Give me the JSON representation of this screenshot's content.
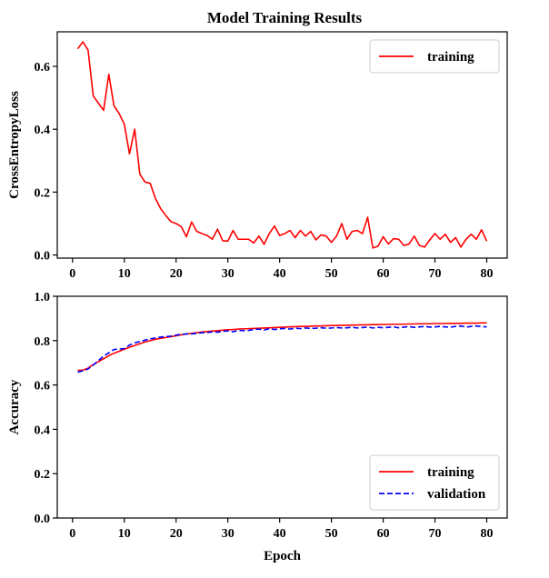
{
  "figure": {
    "title": "Model Training Results"
  },
  "chart_data": [
    {
      "type": "line",
      "title": "Model Training Results",
      "xlabel": "",
      "ylabel": "CrossEntropyLoss",
      "xlim": [
        -2.95,
        83.95
      ],
      "ylim": [
        -0.01,
        0.71
      ],
      "xticks": [
        0,
        10,
        20,
        30,
        40,
        50,
        60,
        70,
        80
      ],
      "xtick_labels": [
        "0",
        "10",
        "20",
        "30",
        "40",
        "50",
        "60",
        "70",
        "80"
      ],
      "yticks": [
        0.0,
        0.2,
        0.4,
        0.6
      ],
      "ytick_labels": [
        "0.0",
        "0.2",
        "0.4",
        "0.6"
      ],
      "grid": false,
      "legend_position": "upper-right",
      "colors": {
        "training": "#ff0000"
      },
      "x": [
        1,
        2,
        3,
        4,
        5,
        6,
        7,
        8,
        9,
        10,
        11,
        12,
        13,
        14,
        15,
        16,
        17,
        18,
        19,
        20,
        21,
        22,
        23,
        24,
        25,
        26,
        27,
        28,
        29,
        30,
        31,
        32,
        33,
        34,
        35,
        36,
        37,
        38,
        39,
        40,
        41,
        42,
        43,
        44,
        45,
        46,
        47,
        48,
        49,
        50,
        51,
        52,
        53,
        54,
        55,
        56,
        57,
        58,
        59,
        60,
        61,
        62,
        63,
        64,
        65,
        66,
        67,
        68,
        69,
        70,
        71,
        72,
        73,
        74,
        75,
        76,
        77,
        78,
        79,
        80
      ],
      "series": [
        {
          "name": "training",
          "style": "solid",
          "values": [
            0.656,
            0.678,
            0.652,
            0.506,
            0.483,
            0.46,
            0.575,
            0.475,
            0.45,
            0.416,
            0.322,
            0.4,
            0.257,
            0.232,
            0.228,
            0.18,
            0.148,
            0.126,
            0.106,
            0.1,
            0.09,
            0.058,
            0.105,
            0.075,
            0.068,
            0.062,
            0.05,
            0.082,
            0.045,
            0.044,
            0.078,
            0.05,
            0.05,
            0.05,
            0.038,
            0.06,
            0.034,
            0.068,
            0.092,
            0.062,
            0.068,
            0.078,
            0.055,
            0.078,
            0.06,
            0.075,
            0.048,
            0.064,
            0.06,
            0.04,
            0.06,
            0.1,
            0.05,
            0.075,
            0.078,
            0.068,
            0.12,
            0.022,
            0.028,
            0.058,
            0.035,
            0.052,
            0.05,
            0.03,
            0.035,
            0.06,
            0.03,
            0.025,
            0.048,
            0.068,
            0.05,
            0.066,
            0.04,
            0.055,
            0.025,
            0.05,
            0.066,
            0.05,
            0.08,
            0.044
          ]
        }
      ]
    },
    {
      "type": "line",
      "title": "",
      "xlabel": "Epoch",
      "ylabel": "Accuracy",
      "xlim": [
        -2.95,
        83.95
      ],
      "ylim": [
        0.0,
        1.0
      ],
      "xticks": [
        0,
        10,
        20,
        30,
        40,
        50,
        60,
        70,
        80
      ],
      "xtick_labels": [
        "0",
        "10",
        "20",
        "30",
        "40",
        "50",
        "60",
        "70",
        "80"
      ],
      "yticks": [
        0.0,
        0.2,
        0.4,
        0.6,
        0.8,
        1.0
      ],
      "ytick_labels": [
        "0.0",
        "0.2",
        "0.4",
        "0.6",
        "0.8",
        "1.0"
      ],
      "grid": false,
      "legend_position": "lower-right",
      "colors": {
        "training": "#ff0000",
        "validation": "#0000ff"
      },
      "x": [
        1,
        2,
        3,
        4,
        5,
        6,
        7,
        8,
        9,
        10,
        11,
        12,
        13,
        14,
        15,
        16,
        17,
        18,
        19,
        20,
        21,
        22,
        23,
        24,
        25,
        26,
        27,
        28,
        29,
        30,
        31,
        32,
        33,
        34,
        35,
        36,
        37,
        38,
        39,
        40,
        41,
        42,
        43,
        44,
        45,
        46,
        47,
        48,
        49,
        50,
        51,
        52,
        53,
        54,
        55,
        56,
        57,
        58,
        59,
        60,
        61,
        62,
        63,
        64,
        65,
        66,
        67,
        68,
        69,
        70,
        71,
        72,
        73,
        74,
        75,
        76,
        77,
        78,
        79,
        80
      ],
      "series": [
        {
          "name": "training",
          "style": "solid",
          "values": [
            0.666,
            0.667,
            0.676,
            0.692,
            0.705,
            0.718,
            0.732,
            0.743,
            0.752,
            0.761,
            0.77,
            0.778,
            0.786,
            0.794,
            0.8,
            0.806,
            0.81,
            0.814,
            0.818,
            0.822,
            0.826,
            0.83,
            0.833,
            0.836,
            0.839,
            0.841,
            0.843,
            0.845,
            0.847,
            0.849,
            0.85,
            0.852,
            0.853,
            0.854,
            0.855,
            0.856,
            0.857,
            0.858,
            0.859,
            0.86,
            0.861,
            0.862,
            0.863,
            0.864,
            0.864,
            0.865,
            0.866,
            0.866,
            0.867,
            0.868,
            0.868,
            0.869,
            0.869,
            0.87,
            0.87,
            0.871,
            0.871,
            0.872,
            0.872,
            0.873,
            0.873,
            0.874,
            0.874,
            0.874,
            0.875,
            0.875,
            0.876,
            0.876,
            0.876,
            0.877,
            0.877,
            0.877,
            0.878,
            0.878,
            0.878,
            0.879,
            0.879,
            0.879,
            0.88,
            0.88
          ]
        },
        {
          "name": "validation",
          "style": "dashed",
          "values": [
            0.658,
            0.664,
            0.672,
            0.69,
            0.71,
            0.73,
            0.745,
            0.76,
            0.762,
            0.764,
            0.78,
            0.79,
            0.796,
            0.802,
            0.808,
            0.812,
            0.816,
            0.818,
            0.82,
            0.825,
            0.828,
            0.83,
            0.83,
            0.833,
            0.836,
            0.836,
            0.84,
            0.838,
            0.842,
            0.844,
            0.84,
            0.846,
            0.845,
            0.846,
            0.85,
            0.852,
            0.848,
            0.854,
            0.85,
            0.853,
            0.855,
            0.852,
            0.856,
            0.854,
            0.857,
            0.855,
            0.856,
            0.858,
            0.856,
            0.857,
            0.859,
            0.857,
            0.858,
            0.86,
            0.857,
            0.859,
            0.861,
            0.857,
            0.86,
            0.858,
            0.86,
            0.862,
            0.858,
            0.861,
            0.863,
            0.86,
            0.862,
            0.864,
            0.861,
            0.862,
            0.864,
            0.862,
            0.861,
            0.864,
            0.866,
            0.861,
            0.864,
            0.866,
            0.863,
            0.862
          ]
        }
      ]
    }
  ]
}
